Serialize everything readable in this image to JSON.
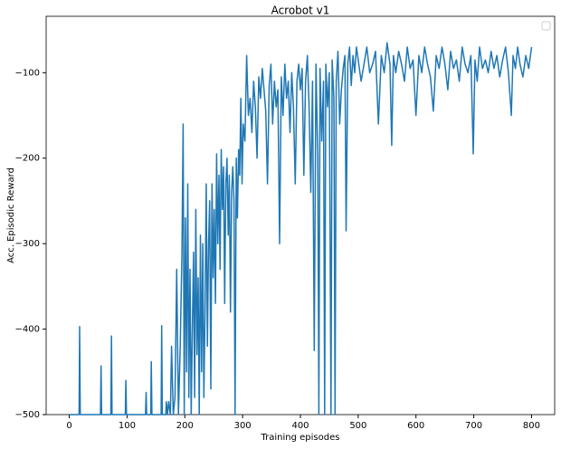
{
  "chart_data": {
    "type": "line",
    "title": "Acrobot v1",
    "xlabel": "Training episodes",
    "ylabel": "Acc. Episodic Reward",
    "xlim": [
      -40,
      840
    ],
    "ylim": [
      -500,
      -34
    ],
    "xticks": [
      0,
      100,
      200,
      300,
      400,
      500,
      600,
      700,
      800
    ],
    "yticks": [
      {
        "value": -500,
        "label": "−500"
      },
      {
        "value": -400,
        "label": "−400"
      },
      {
        "value": -300,
        "label": "−300"
      },
      {
        "value": -200,
        "label": "−200"
      },
      {
        "value": -100,
        "label": "−100"
      }
    ],
    "series": [
      {
        "color": "#1f77b4",
        "x": [
          0,
          17,
          18,
          19,
          54,
          55,
          56,
          72,
          73,
          74,
          97,
          98,
          99,
          132,
          133,
          134,
          141,
          142,
          143,
          159,
          160,
          161,
          167,
          168,
          170,
          172,
          175,
          177,
          180,
          183,
          186,
          189,
          192,
          195,
          197,
          199,
          201,
          203,
          205,
          207,
          209,
          211,
          213,
          215,
          217,
          219,
          221,
          223,
          225,
          227,
          229,
          231,
          233,
          235,
          237,
          239,
          241,
          243,
          245,
          247,
          249,
          251,
          253,
          255,
          257,
          259,
          261,
          263,
          265,
          267,
          269,
          271,
          273,
          275,
          277,
          279,
          281,
          283,
          285,
          287,
          289,
          291,
          293,
          295,
          297,
          299,
          301,
          304,
          307,
          310,
          313,
          316,
          319,
          322,
          325,
          328,
          331,
          334,
          337,
          340,
          343,
          346,
          349,
          352,
          355,
          358,
          361,
          364,
          367,
          370,
          373,
          376,
          379,
          382,
          385,
          388,
          391,
          394,
          397,
          400,
          403,
          406,
          409,
          412,
          415,
          418,
          421,
          424,
          427,
          430,
          432,
          434,
          437,
          440,
          442,
          444,
          447,
          450,
          453,
          455,
          458,
          460,
          462,
          465,
          468,
          471,
          474,
          477,
          479,
          482,
          485,
          488,
          491,
          494,
          497,
          500,
          505,
          510,
          515,
          520,
          525,
          530,
          535,
          540,
          545,
          550,
          555,
          558,
          561,
          565,
          570,
          575,
          580,
          585,
          590,
          595,
          600,
          605,
          610,
          615,
          620,
          625,
          630,
          635,
          640,
          645,
          650,
          655,
          660,
          665,
          670,
          675,
          680,
          685,
          690,
          695,
          699,
          702,
          706,
          710,
          715,
          720,
          725,
          730,
          735,
          740,
          745,
          750,
          755,
          760,
          765,
          768,
          772,
          776,
          780,
          785,
          790,
          795,
          800
        ],
        "values": [
          -500,
          -500,
          -397,
          -500,
          -500,
          -443,
          -500,
          -500,
          -408,
          -500,
          -500,
          -460,
          -500,
          -500,
          -474,
          -500,
          -500,
          -438,
          -500,
          -500,
          -396,
          -500,
          -500,
          -485,
          -500,
          -485,
          -500,
          -420,
          -500,
          -480,
          -330,
          -500,
          -420,
          -310,
          -160,
          -500,
          -270,
          -450,
          -230,
          -480,
          -330,
          -500,
          -400,
          -310,
          -480,
          -260,
          -430,
          -340,
          -500,
          -290,
          -450,
          -300,
          -480,
          -380,
          -230,
          -420,
          -300,
          -250,
          -470,
          -230,
          -340,
          -260,
          -370,
          -195,
          -300,
          -220,
          -330,
          -190,
          -260,
          -210,
          -370,
          -230,
          -200,
          -290,
          -220,
          -380,
          -240,
          -210,
          -250,
          -500,
          -200,
          -270,
          -190,
          -220,
          -130,
          -230,
          -160,
          -180,
          -80,
          -150,
          -130,
          -170,
          -110,
          -140,
          -200,
          -105,
          -130,
          -95,
          -120,
          -145,
          -230,
          -115,
          -90,
          -160,
          -110,
          -140,
          -120,
          -300,
          -105,
          -150,
          -90,
          -130,
          -110,
          -170,
          -100,
          -140,
          -230,
          -110,
          -90,
          -120,
          -95,
          -220,
          -110,
          -80,
          -140,
          -240,
          -110,
          -425,
          -90,
          -200,
          -500,
          -95,
          -180,
          -110,
          -500,
          -90,
          -140,
          -100,
          -500,
          -85,
          -130,
          -500,
          -110,
          -75,
          -160,
          -120,
          -95,
          -80,
          -285,
          -90,
          -70,
          -115,
          -80,
          -100,
          -70,
          -85,
          -110,
          -90,
          -70,
          -100,
          -90,
          -75,
          -160,
          -80,
          -100,
          -65,
          -90,
          -185,
          -80,
          -100,
          -75,
          -90,
          -110,
          -70,
          -95,
          -85,
          -150,
          -80,
          -100,
          -70,
          -90,
          -105,
          -145,
          -80,
          -95,
          -70,
          -90,
          -120,
          -75,
          -95,
          -85,
          -110,
          -70,
          -90,
          -100,
          -80,
          -195,
          -85,
          -110,
          -70,
          -95,
          -85,
          -100,
          -75,
          -95,
          -80,
          -105,
          -85,
          -70,
          -100,
          -150,
          -80,
          -95,
          -70,
          -90,
          -105,
          -80,
          -95,
          -70
        ]
      }
    ]
  }
}
